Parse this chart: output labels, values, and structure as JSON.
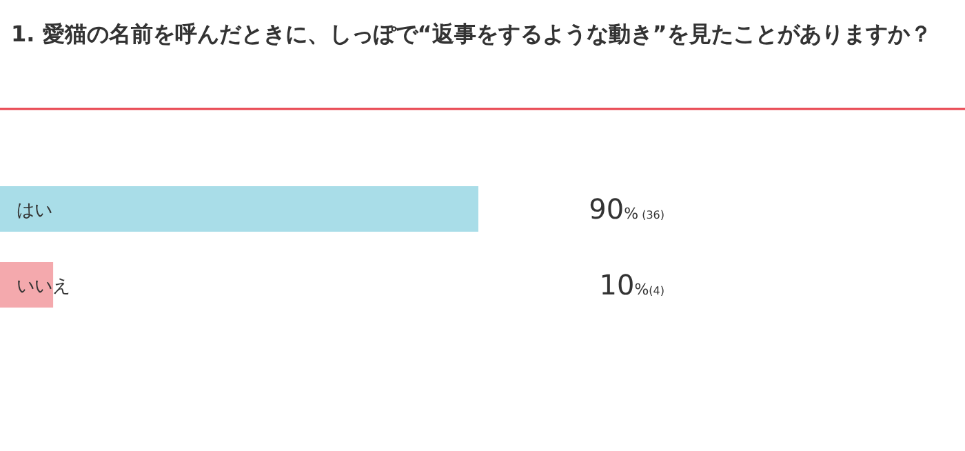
{
  "chart_data": {
    "type": "bar",
    "orientation": "horizontal",
    "title": "1. 愛猫の名前を呼んだときに、しっぽで“返事をするような動き”を見たことがありますか？",
    "categories": [
      "はい",
      "いいえ"
    ],
    "values": [
      90,
      10
    ],
    "colors": [
      "#a9dde8",
      "#f4a9ad"
    ],
    "value_labels": [
      "90% (36)",
      "10%(4)"
    ]
  }
}
